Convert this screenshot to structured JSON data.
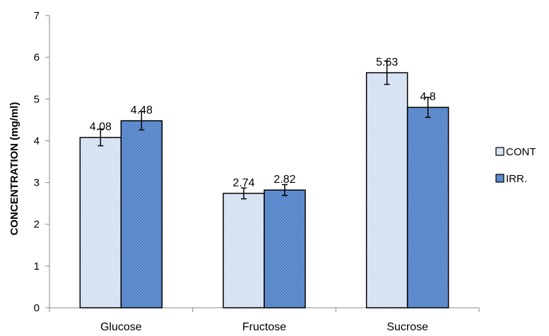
{
  "chart_data": {
    "type": "bar",
    "categories": [
      "Glucose",
      "Fructose",
      "Sucrose"
    ],
    "series": [
      {
        "name": "CONT",
        "values": [
          4.08,
          2.74,
          5.63
        ],
        "errors": [
          0.2,
          0.13,
          0.28
        ],
        "labels": [
          "4.08",
          "2.74",
          "5.63"
        ],
        "color": "#d6e3f4"
      },
      {
        "name": "IRR.",
        "values": [
          4.48,
          2.82,
          4.8
        ],
        "errors": [
          0.22,
          0.13,
          0.24
        ],
        "labels": [
          "4.48",
          "2.82",
          "4.8"
        ],
        "color": "#4f81c8"
      }
    ],
    "xlabel": "",
    "ylabel": "CONCENTRATION (mg/ml)",
    "ylim": [
      0,
      7
    ],
    "yticks": [
      "0",
      "1",
      "2",
      "3",
      "4",
      "5",
      "6",
      "7"
    ],
    "grid": false,
    "legend_position": "right"
  }
}
